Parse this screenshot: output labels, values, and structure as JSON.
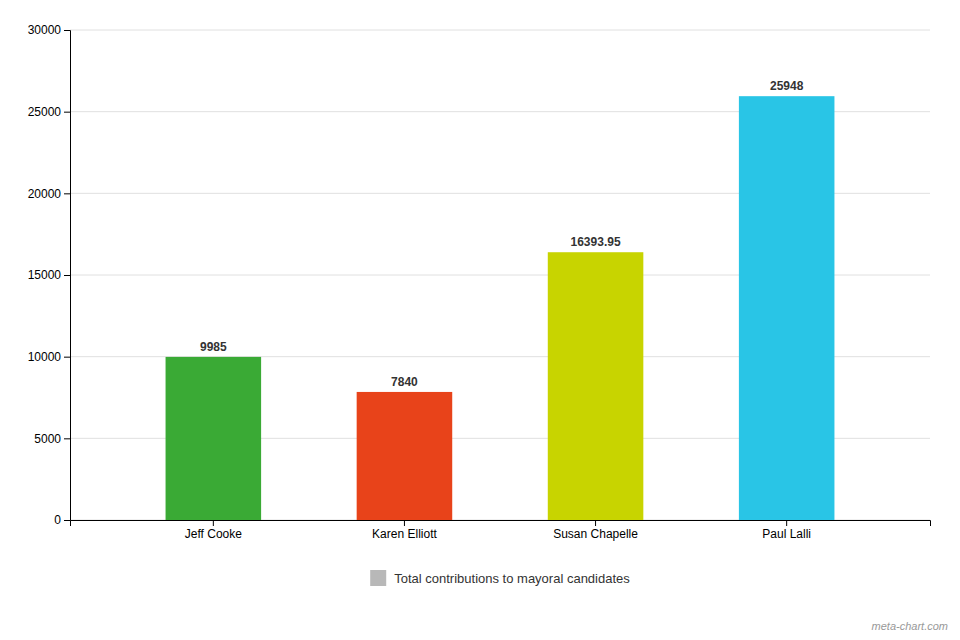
{
  "chart_data": {
    "type": "bar",
    "categories": [
      "Jeff Cooke",
      "Karen Elliott",
      "Susan Chapelle",
      "Paul Lalli"
    ],
    "series": [
      {
        "name": "Total contributions to mayoral candidates",
        "color": "#b8b8b8",
        "colors": [
          "#3aaa35",
          "#e8431a",
          "#c8d400",
          "#29c5e6"
        ],
        "values": [
          9985,
          7840,
          16393.95,
          25948
        ]
      }
    ],
    "ylim": [
      0,
      30000
    ],
    "yticks": [
      0,
      5000,
      10000,
      15000,
      20000,
      25000,
      30000
    ],
    "grid": true,
    "legend": "bottom",
    "data_labels": true,
    "annotations": [
      "meta-chart.com"
    ]
  }
}
